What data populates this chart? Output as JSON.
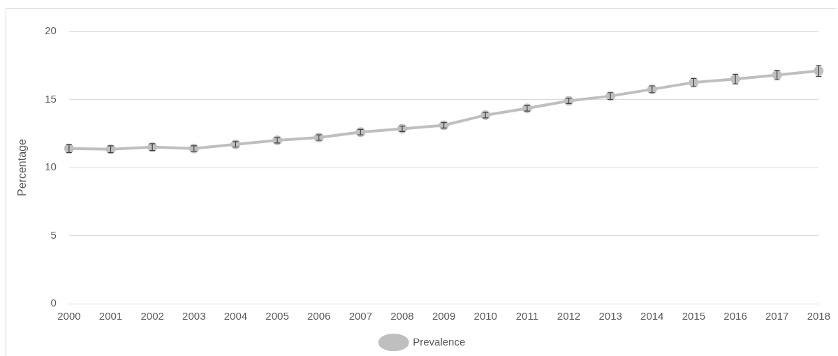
{
  "chart_data": {
    "type": "line",
    "categories": [
      "2000",
      "2001",
      "2002",
      "2003",
      "2004",
      "2005",
      "2006",
      "2007",
      "2008",
      "2009",
      "2010",
      "2011",
      "2012",
      "2013",
      "2014",
      "2015",
      "2016",
      "2017",
      "2018"
    ],
    "ylabel": "Percentage",
    "series": [
      {
        "name": "Prevalence",
        "color": "#bfbfbf",
        "values": [
          11.4,
          11.35,
          11.5,
          11.4,
          11.7,
          12.0,
          12.2,
          12.6,
          12.85,
          13.1,
          13.85,
          14.35,
          14.9,
          15.25,
          15.75,
          16.25,
          16.5,
          16.8,
          17.1
        ],
        "errors": [
          0.3,
          0.25,
          0.25,
          0.2,
          0.2,
          0.2,
          0.2,
          0.2,
          0.2,
          0.2,
          0.2,
          0.2,
          0.2,
          0.25,
          0.25,
          0.3,
          0.35,
          0.35,
          0.4
        ]
      }
    ],
    "ylim": [
      0,
      20
    ],
    "yticks": [
      0,
      5,
      10,
      15,
      20
    ],
    "grid": "y",
    "legend": "bottom",
    "marker": "circle",
    "line_style": "solid"
  }
}
